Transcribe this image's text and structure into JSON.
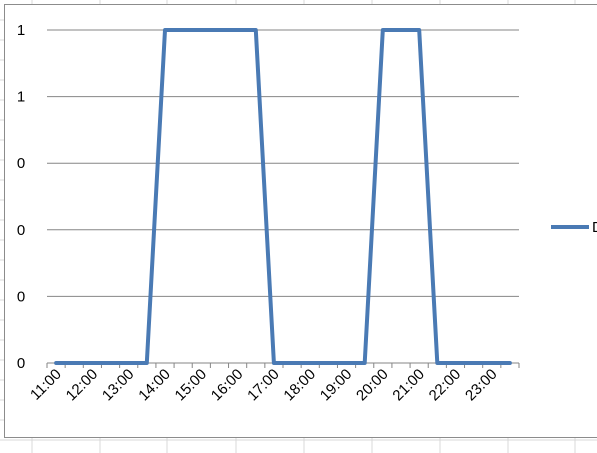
{
  "chart_data": {
    "type": "line",
    "title": "",
    "xlabel": "",
    "ylabel": "",
    "categories": [
      "11:00",
      "11:30",
      "12:00",
      "12:30",
      "13:00",
      "13:30",
      "14:00",
      "14:30",
      "15:00",
      "15:30",
      "16:00",
      "16:30",
      "17:00",
      "17:30",
      "18:00",
      "18:30",
      "19:00",
      "19:30",
      "20:00",
      "20:30",
      "21:00",
      "21:30",
      "22:00",
      "22:30",
      "23:00",
      "23:30"
    ],
    "x_tick_labels": [
      "11:00",
      "12:00",
      "13:00",
      "14:00",
      "15:00",
      "16:00",
      "17:00",
      "18:00",
      "19:00",
      "20:00",
      "21:00",
      "22:00",
      "23:00"
    ],
    "y_tick_labels": [
      "0",
      "0",
      "0",
      "0",
      "1",
      "1"
    ],
    "ylim": [
      0,
      1
    ],
    "grid": true,
    "legend_position": "right",
    "series": [
      {
        "name": "D",
        "color": "#4a7ab4",
        "values": [
          0,
          0,
          0,
          0,
          0,
          0,
          1,
          1,
          1,
          1,
          1,
          1,
          0,
          0,
          0,
          0,
          0,
          0,
          1,
          1,
          1,
          0,
          0,
          0,
          0,
          0
        ]
      }
    ]
  }
}
